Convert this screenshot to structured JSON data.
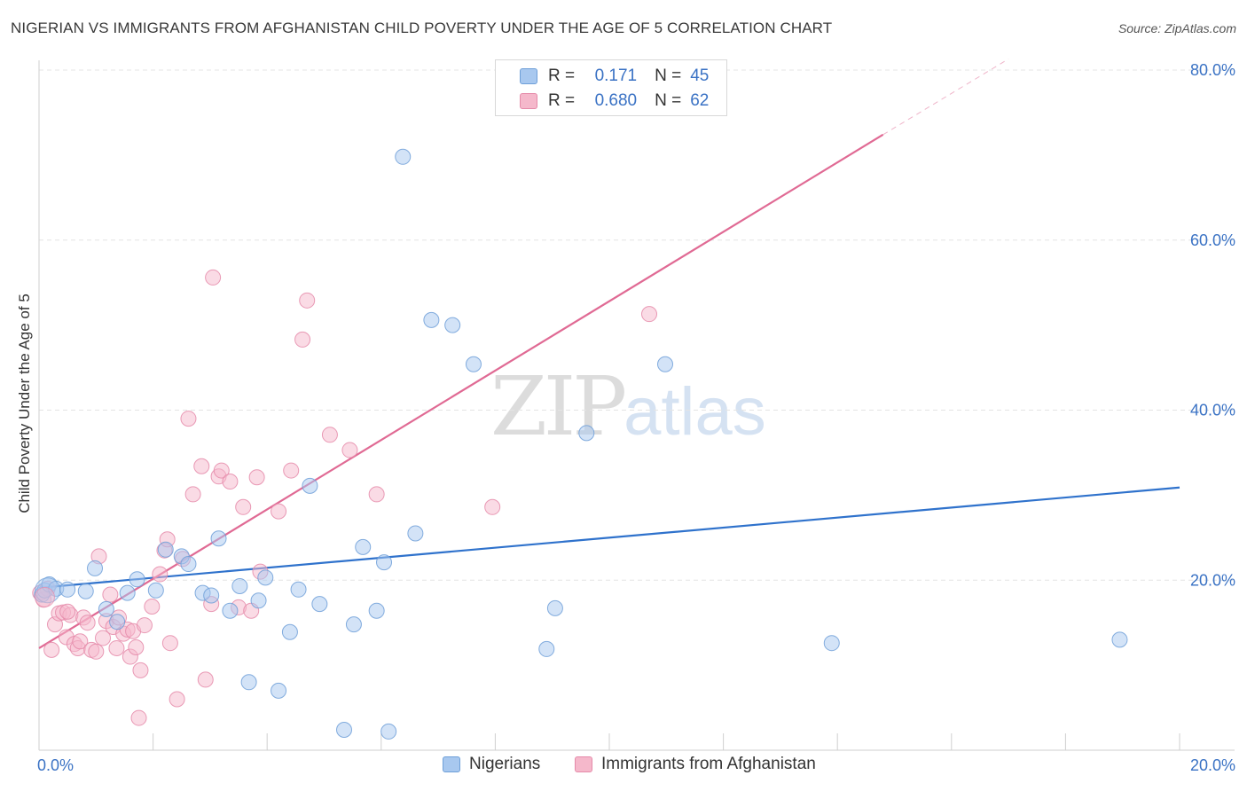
{
  "title": "NIGERIAN VS IMMIGRANTS FROM AFGHANISTAN CHILD POVERTY UNDER THE AGE OF 5 CORRELATION CHART",
  "source": "Source: ZipAtlas.com",
  "watermark": {
    "zip": "ZIP",
    "atlas": "atlas"
  },
  "legend_top": {
    "rows": [
      {
        "r_label": "R =",
        "r_value": "0.171",
        "n_label": "N =",
        "n_value": "45"
      },
      {
        "r_label": "R =",
        "r_value": "0.680",
        "n_label": "N =",
        "n_value": "62"
      }
    ]
  },
  "legend_bottom": {
    "items": [
      "Nigerians",
      "Immigrants from Afghanistan"
    ]
  },
  "colors": {
    "nigerians_fill": "#a8c8ef",
    "nigerians_stroke": "#6e9fd8",
    "nigerians_line": "#2f72cc",
    "afghan_fill": "#f5b8cb",
    "afghan_stroke": "#e58aa9",
    "afghan_line": "#e06a94",
    "axis_text": "#3a72c4",
    "grid": "#e4e4e4"
  },
  "chart_data": {
    "type": "scatter",
    "title": "NIGERIAN VS IMMIGRANTS FROM AFGHANISTAN CHILD POVERTY UNDER THE AGE OF 5 CORRELATION CHART",
    "xlabel": "",
    "ylabel": "Child Poverty Under the Age of 5",
    "xlim": [
      0,
      20
    ],
    "ylim": [
      0,
      80
    ],
    "x_tick_labels": [
      "0.0%",
      "20.0%"
    ],
    "y_tick_labels": [
      "20.0%",
      "40.0%",
      "60.0%",
      "80.0%"
    ],
    "y_ticks": [
      20,
      40,
      60,
      80
    ],
    "grid": true,
    "legend_placement": "top-center and bottom",
    "series": [
      {
        "name": "Nigerians",
        "R": 0.171,
        "N": 45,
        "trend": {
          "x": [
            0,
            20
          ],
          "y": [
            19.1,
            30.9
          ]
        },
        "points": [
          [
            0.05,
            18.3
          ],
          [
            0.1,
            18.8
          ],
          [
            0.18,
            19.5
          ],
          [
            0.3,
            19.0
          ],
          [
            0.5,
            18.9
          ],
          [
            0.82,
            18.7
          ],
          [
            0.98,
            21.4
          ],
          [
            1.18,
            16.6
          ],
          [
            1.37,
            15.1
          ],
          [
            1.55,
            18.5
          ],
          [
            1.72,
            20.1
          ],
          [
            2.05,
            18.8
          ],
          [
            2.22,
            23.6
          ],
          [
            2.5,
            22.8
          ],
          [
            2.62,
            21.9
          ],
          [
            2.87,
            18.5
          ],
          [
            3.02,
            18.2
          ],
          [
            3.15,
            24.9
          ],
          [
            3.35,
            16.4
          ],
          [
            3.52,
            19.3
          ],
          [
            3.68,
            8.0
          ],
          [
            3.85,
            17.6
          ],
          [
            3.97,
            20.3
          ],
          [
            4.2,
            7.0
          ],
          [
            4.4,
            13.9
          ],
          [
            4.55,
            18.9
          ],
          [
            4.75,
            31.1
          ],
          [
            4.92,
            17.2
          ],
          [
            5.35,
            2.4
          ],
          [
            5.52,
            14.8
          ],
          [
            5.68,
            23.9
          ],
          [
            5.92,
            16.4
          ],
          [
            6.05,
            22.1
          ],
          [
            6.13,
            2.2
          ],
          [
            6.38,
            69.8
          ],
          [
            6.6,
            25.5
          ],
          [
            6.88,
            50.6
          ],
          [
            7.25,
            50.0
          ],
          [
            7.62,
            45.4
          ],
          [
            8.9,
            11.9
          ],
          [
            9.05,
            16.7
          ],
          [
            9.6,
            37.3
          ],
          [
            10.98,
            45.4
          ],
          [
            13.9,
            12.6
          ],
          [
            18.95,
            13.0
          ]
        ]
      },
      {
        "name": "Immigrants from Afghanistan",
        "R": 0.68,
        "N": 62,
        "trend": {
          "x": [
            0,
            14.8
          ],
          "y": [
            12.0,
            72.4
          ]
        },
        "trend_dashed": {
          "x": [
            14.8,
            17.0
          ],
          "y": [
            72.4,
            81.3
          ]
        },
        "points": [
          [
            0.02,
            18.5
          ],
          [
            0.08,
            17.7
          ],
          [
            0.15,
            19.0
          ],
          [
            0.22,
            11.8
          ],
          [
            0.28,
            14.8
          ],
          [
            0.35,
            16.1
          ],
          [
            0.42,
            16.2
          ],
          [
            0.48,
            13.3
          ],
          [
            0.55,
            15.9
          ],
          [
            0.62,
            12.5
          ],
          [
            0.68,
            12.0
          ],
          [
            0.72,
            12.8
          ],
          [
            0.78,
            15.6
          ],
          [
            0.85,
            15.0
          ],
          [
            0.92,
            11.8
          ],
          [
            1.0,
            11.6
          ],
          [
            1.05,
            22.8
          ],
          [
            1.12,
            13.2
          ],
          [
            1.18,
            15.2
          ],
          [
            1.25,
            18.3
          ],
          [
            1.3,
            14.5
          ],
          [
            1.36,
            12.0
          ],
          [
            1.4,
            15.6
          ],
          [
            1.48,
            13.7
          ],
          [
            1.55,
            14.2
          ],
          [
            1.6,
            11.0
          ],
          [
            1.65,
            14.0
          ],
          [
            1.7,
            12.1
          ],
          [
            1.75,
            3.8
          ],
          [
            1.78,
            9.4
          ],
          [
            1.85,
            14.7
          ],
          [
            1.98,
            16.9
          ],
          [
            2.12,
            20.7
          ],
          [
            2.2,
            23.5
          ],
          [
            2.25,
            24.8
          ],
          [
            2.3,
            12.6
          ],
          [
            2.42,
            6.0
          ],
          [
            2.52,
            22.5
          ],
          [
            2.62,
            39.0
          ],
          [
            2.7,
            30.1
          ],
          [
            2.85,
            33.4
          ],
          [
            2.92,
            8.3
          ],
          [
            3.02,
            17.2
          ],
          [
            3.05,
            55.6
          ],
          [
            3.15,
            32.2
          ],
          [
            3.2,
            32.9
          ],
          [
            3.35,
            31.6
          ],
          [
            3.5,
            16.8
          ],
          [
            3.58,
            28.6
          ],
          [
            3.72,
            16.4
          ],
          [
            3.82,
            32.1
          ],
          [
            3.88,
            21.0
          ],
          [
            4.2,
            28.1
          ],
          [
            4.42,
            32.9
          ],
          [
            4.62,
            48.3
          ],
          [
            4.7,
            52.9
          ],
          [
            5.1,
            37.1
          ],
          [
            5.45,
            35.3
          ],
          [
            5.92,
            30.1
          ],
          [
            7.95,
            28.6
          ],
          [
            10.7,
            51.3
          ],
          [
            0.5,
            16.3
          ]
        ]
      }
    ]
  }
}
